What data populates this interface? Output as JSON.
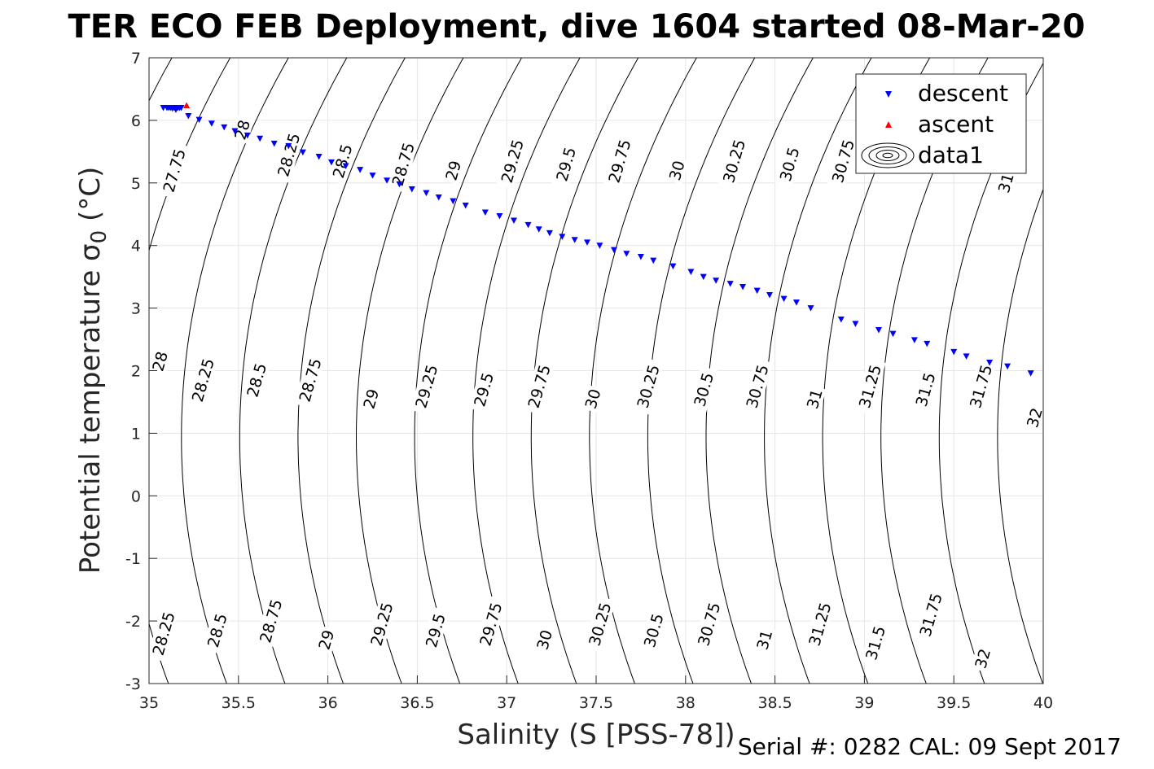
{
  "chart_data": {
    "type": "scatter",
    "title": "TER ECO FEB Deployment, dive 1604 started 08-Mar-20",
    "xlabel": "Salinity (S [PSS-78])",
    "ylabel": "Potential temperature σ",
    "ylabel_sub": "0",
    "ylabel_unit": " (°C)",
    "xlim": [
      35,
      40
    ],
    "ylim": [
      -3,
      7
    ],
    "xticks": [
      35,
      35.5,
      36,
      36.5,
      37,
      37.5,
      38,
      38.5,
      39,
      39.5,
      40
    ],
    "yticks": [
      -3,
      -2,
      -1,
      0,
      1,
      2,
      3,
      4,
      5,
      6,
      7
    ],
    "xtick_labels": [
      "35",
      "35.5",
      "36",
      "36.5",
      "37",
      "37.5",
      "38",
      "38.5",
      "39",
      "39.5",
      "40"
    ],
    "ytick_labels": [
      "-3",
      "-2",
      "-1",
      "0",
      "1",
      "2",
      "3",
      "4",
      "5",
      "6",
      "7"
    ],
    "grid": true,
    "legend_position": "top-right",
    "legend": [
      "descent",
      "ascent",
      "data1"
    ],
    "series": [
      {
        "name": "descent",
        "color": "#0000ff",
        "marker": "triangle-down",
        "points": [
          [
            35.08,
            6.2
          ],
          [
            35.1,
            6.2
          ],
          [
            35.11,
            6.2
          ],
          [
            35.12,
            6.2
          ],
          [
            35.13,
            6.19
          ],
          [
            35.14,
            6.2
          ],
          [
            35.15,
            6.17
          ],
          [
            35.16,
            6.2
          ],
          [
            35.17,
            6.2
          ],
          [
            35.18,
            6.2
          ],
          [
            35.22,
            6.07
          ],
          [
            35.28,
            6.01
          ],
          [
            35.35,
            5.95
          ],
          [
            35.42,
            5.89
          ],
          [
            35.48,
            5.83
          ],
          [
            35.55,
            5.76
          ],
          [
            35.62,
            5.71
          ],
          [
            35.7,
            5.63
          ],
          [
            35.78,
            5.59
          ],
          [
            35.86,
            5.49
          ],
          [
            35.95,
            5.42
          ],
          [
            36.02,
            5.33
          ],
          [
            36.1,
            5.27
          ],
          [
            36.18,
            5.21
          ],
          [
            36.25,
            5.12
          ],
          [
            36.33,
            5.04
          ],
          [
            36.4,
            4.98
          ],
          [
            36.47,
            4.9
          ],
          [
            36.55,
            4.84
          ],
          [
            36.62,
            4.77
          ],
          [
            36.7,
            4.71
          ],
          [
            36.77,
            4.64
          ],
          [
            36.88,
            4.53
          ],
          [
            36.96,
            4.47
          ],
          [
            37.04,
            4.4
          ],
          [
            37.12,
            4.33
          ],
          [
            37.18,
            4.26
          ],
          [
            37.24,
            4.2
          ],
          [
            37.31,
            4.14
          ],
          [
            37.38,
            4.09
          ],
          [
            37.45,
            4.05
          ],
          [
            37.52,
            4.0
          ],
          [
            37.6,
            3.93
          ],
          [
            37.67,
            3.87
          ],
          [
            37.75,
            3.82
          ],
          [
            37.82,
            3.76
          ],
          [
            37.93,
            3.67
          ],
          [
            38.03,
            3.58
          ],
          [
            38.1,
            3.5
          ],
          [
            38.17,
            3.44
          ],
          [
            38.25,
            3.39
          ],
          [
            38.32,
            3.34
          ],
          [
            38.4,
            3.28
          ],
          [
            38.47,
            3.21
          ],
          [
            38.55,
            3.15
          ],
          [
            38.62,
            3.09
          ],
          [
            38.7,
            3.0
          ],
          [
            38.87,
            2.82
          ],
          [
            38.95,
            2.75
          ],
          [
            39.08,
            2.65
          ],
          [
            39.16,
            2.59
          ],
          [
            39.28,
            2.49
          ],
          [
            39.35,
            2.43
          ],
          [
            39.5,
            2.3
          ],
          [
            39.57,
            2.23
          ],
          [
            39.7,
            2.13
          ],
          [
            39.8,
            2.07
          ],
          [
            39.93,
            1.96
          ]
        ]
      },
      {
        "name": "ascent",
        "color": "#ff0000",
        "marker": "triangle-up",
        "points": [
          [
            35.21,
            6.24
          ]
        ]
      }
    ],
    "contours": {
      "levels": [
        27.75,
        28,
        28.25,
        28.5,
        28.75,
        29,
        29.25,
        29.5,
        29.75,
        30,
        30.25,
        30.5,
        30.75,
        31,
        31.25,
        31.5,
        31.75,
        32
      ],
      "color": "#000000",
      "labels": [
        {
          "text": "27.75",
          "x": 35.14,
          "y": 5.2
        },
        {
          "text": "28",
          "x": 35.52,
          "y": 5.85
        },
        {
          "text": "28.25",
          "x": 35.78,
          "y": 5.45
        },
        {
          "text": "28.5",
          "x": 36.08,
          "y": 5.35
        },
        {
          "text": "28.75",
          "x": 36.42,
          "y": 5.3
        },
        {
          "text": "29",
          "x": 36.7,
          "y": 5.2
        },
        {
          "text": "29.25",
          "x": 37.03,
          "y": 5.35
        },
        {
          "text": "29.5",
          "x": 37.33,
          "y": 5.3
        },
        {
          "text": "29.75",
          "x": 37.63,
          "y": 5.35
        },
        {
          "text": "30",
          "x": 37.95,
          "y": 5.2
        },
        {
          "text": "30.25",
          "x": 38.27,
          "y": 5.35
        },
        {
          "text": "30.5",
          "x": 38.58,
          "y": 5.3
        },
        {
          "text": "30.75",
          "x": 38.88,
          "y": 5.35
        },
        {
          "text": "31",
          "x": 39.79,
          "y": 5.0
        },
        {
          "text": "28",
          "x": 35.06,
          "y": 2.15
        },
        {
          "text": "28.25",
          "x": 35.3,
          "y": 1.85
        },
        {
          "text": "28.5",
          "x": 35.6,
          "y": 1.85
        },
        {
          "text": "28.75",
          "x": 35.9,
          "y": 1.85
        },
        {
          "text": "29",
          "x": 36.24,
          "y": 1.55
        },
        {
          "text": "29.25",
          "x": 36.55,
          "y": 1.75
        },
        {
          "text": "29.5",
          "x": 36.87,
          "y": 1.7
        },
        {
          "text": "29.75",
          "x": 37.18,
          "y": 1.75
        },
        {
          "text": "30",
          "x": 37.48,
          "y": 1.55
        },
        {
          "text": "30.25",
          "x": 37.79,
          "y": 1.75
        },
        {
          "text": "30.5",
          "x": 38.1,
          "y": 1.7
        },
        {
          "text": "30.75",
          "x": 38.4,
          "y": 1.75
        },
        {
          "text": "31",
          "x": 38.72,
          "y": 1.55
        },
        {
          "text": "31.25",
          "x": 39.03,
          "y": 1.75
        },
        {
          "text": "31.5",
          "x": 39.34,
          "y": 1.7
        },
        {
          "text": "31.75",
          "x": 39.65,
          "y": 1.75
        },
        {
          "text": "32",
          "x": 39.95,
          "y": 1.25
        },
        {
          "text": "28.25",
          "x": 35.08,
          "y": -2.2
        },
        {
          "text": "28.5",
          "x": 35.38,
          "y": -2.15
        },
        {
          "text": "28.75",
          "x": 35.68,
          "y": -2.0
        },
        {
          "text": "29",
          "x": 35.99,
          "y": -2.3
        },
        {
          "text": "29.25",
          "x": 36.3,
          "y": -2.05
        },
        {
          "text": "29.5",
          "x": 36.6,
          "y": -2.15
        },
        {
          "text": "29.75",
          "x": 36.91,
          "y": -2.05
        },
        {
          "text": "30",
          "x": 37.21,
          "y": -2.3
        },
        {
          "text": "30.25",
          "x": 37.52,
          "y": -2.05
        },
        {
          "text": "30.5",
          "x": 37.82,
          "y": -2.15
        },
        {
          "text": "30.75",
          "x": 38.13,
          "y": -2.05
        },
        {
          "text": "31",
          "x": 38.44,
          "y": -2.3
        },
        {
          "text": "31.25",
          "x": 38.75,
          "y": -2.05
        },
        {
          "text": "31.5",
          "x": 39.06,
          "y": -2.35
        },
        {
          "text": "31.75",
          "x": 39.37,
          "y": -1.9
        },
        {
          "text": "32",
          "x": 39.66,
          "y": -2.6
        }
      ]
    }
  },
  "footer": {
    "serial": "Serial #: 0282  CAL: 09 Sept 2017"
  }
}
